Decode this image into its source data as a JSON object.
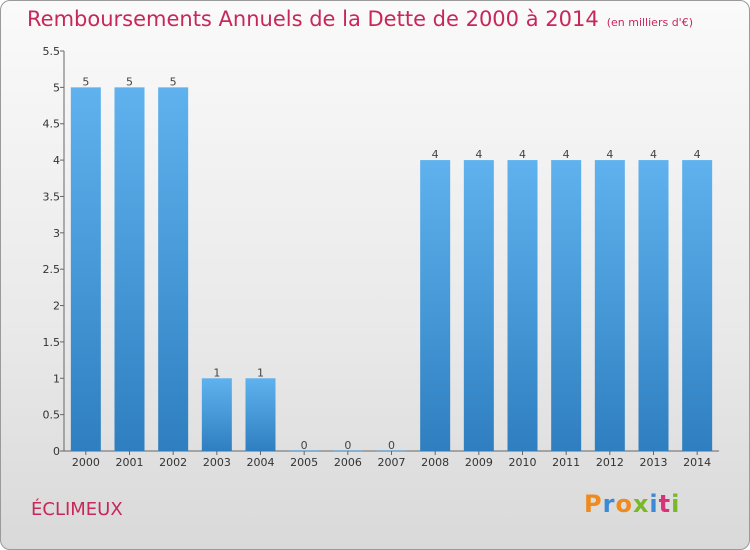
{
  "header": {
    "title": "Remboursements Annuels de la Dette de 2000 à 2014",
    "subtitle": "(en milliers d'€)"
  },
  "footer": {
    "commune": "ÉCLIMEUX",
    "brand": "Proxiti"
  },
  "colors": {
    "title": "#c8275a",
    "bar_top": "#5fb2ee",
    "bar_bottom": "#2f7fc0",
    "brand_letters": [
      "#f08a1c",
      "#3b8ad8",
      "#f08a1c",
      "#7ab828",
      "#3b8ad8",
      "#d8327a",
      "#7ab828"
    ]
  },
  "chart_data": {
    "type": "bar",
    "title": "Remboursements Annuels de la Dette de 2000 à 2014",
    "subtitle": "(en milliers d'€)",
    "xlabel": "",
    "ylabel": "",
    "categories": [
      "2000",
      "2001",
      "2002",
      "2003",
      "2004",
      "2005",
      "2006",
      "2007",
      "2008",
      "2009",
      "2010",
      "2011",
      "2012",
      "2013",
      "2014"
    ],
    "values": [
      5,
      5,
      5,
      1,
      1,
      0,
      0,
      0,
      4,
      4,
      4,
      4,
      4,
      4,
      4
    ],
    "value_labels": [
      "5",
      "5",
      "5",
      "1",
      "1",
      "0",
      "0",
      "0",
      "4",
      "4",
      "4",
      "4",
      "4",
      "4",
      "4"
    ],
    "ylim": [
      0,
      5.5
    ],
    "yticks": [
      0,
      0.5,
      1,
      1.5,
      2,
      2.5,
      3,
      3.5,
      4,
      4.5,
      5,
      5.5
    ],
    "ytick_labels": [
      "0",
      "0.5",
      "1",
      "1.5",
      "2",
      "2.5",
      "3",
      "3.5",
      "4",
      "4.5",
      "5",
      "5.5"
    ],
    "grid": false,
    "legend": "none"
  }
}
